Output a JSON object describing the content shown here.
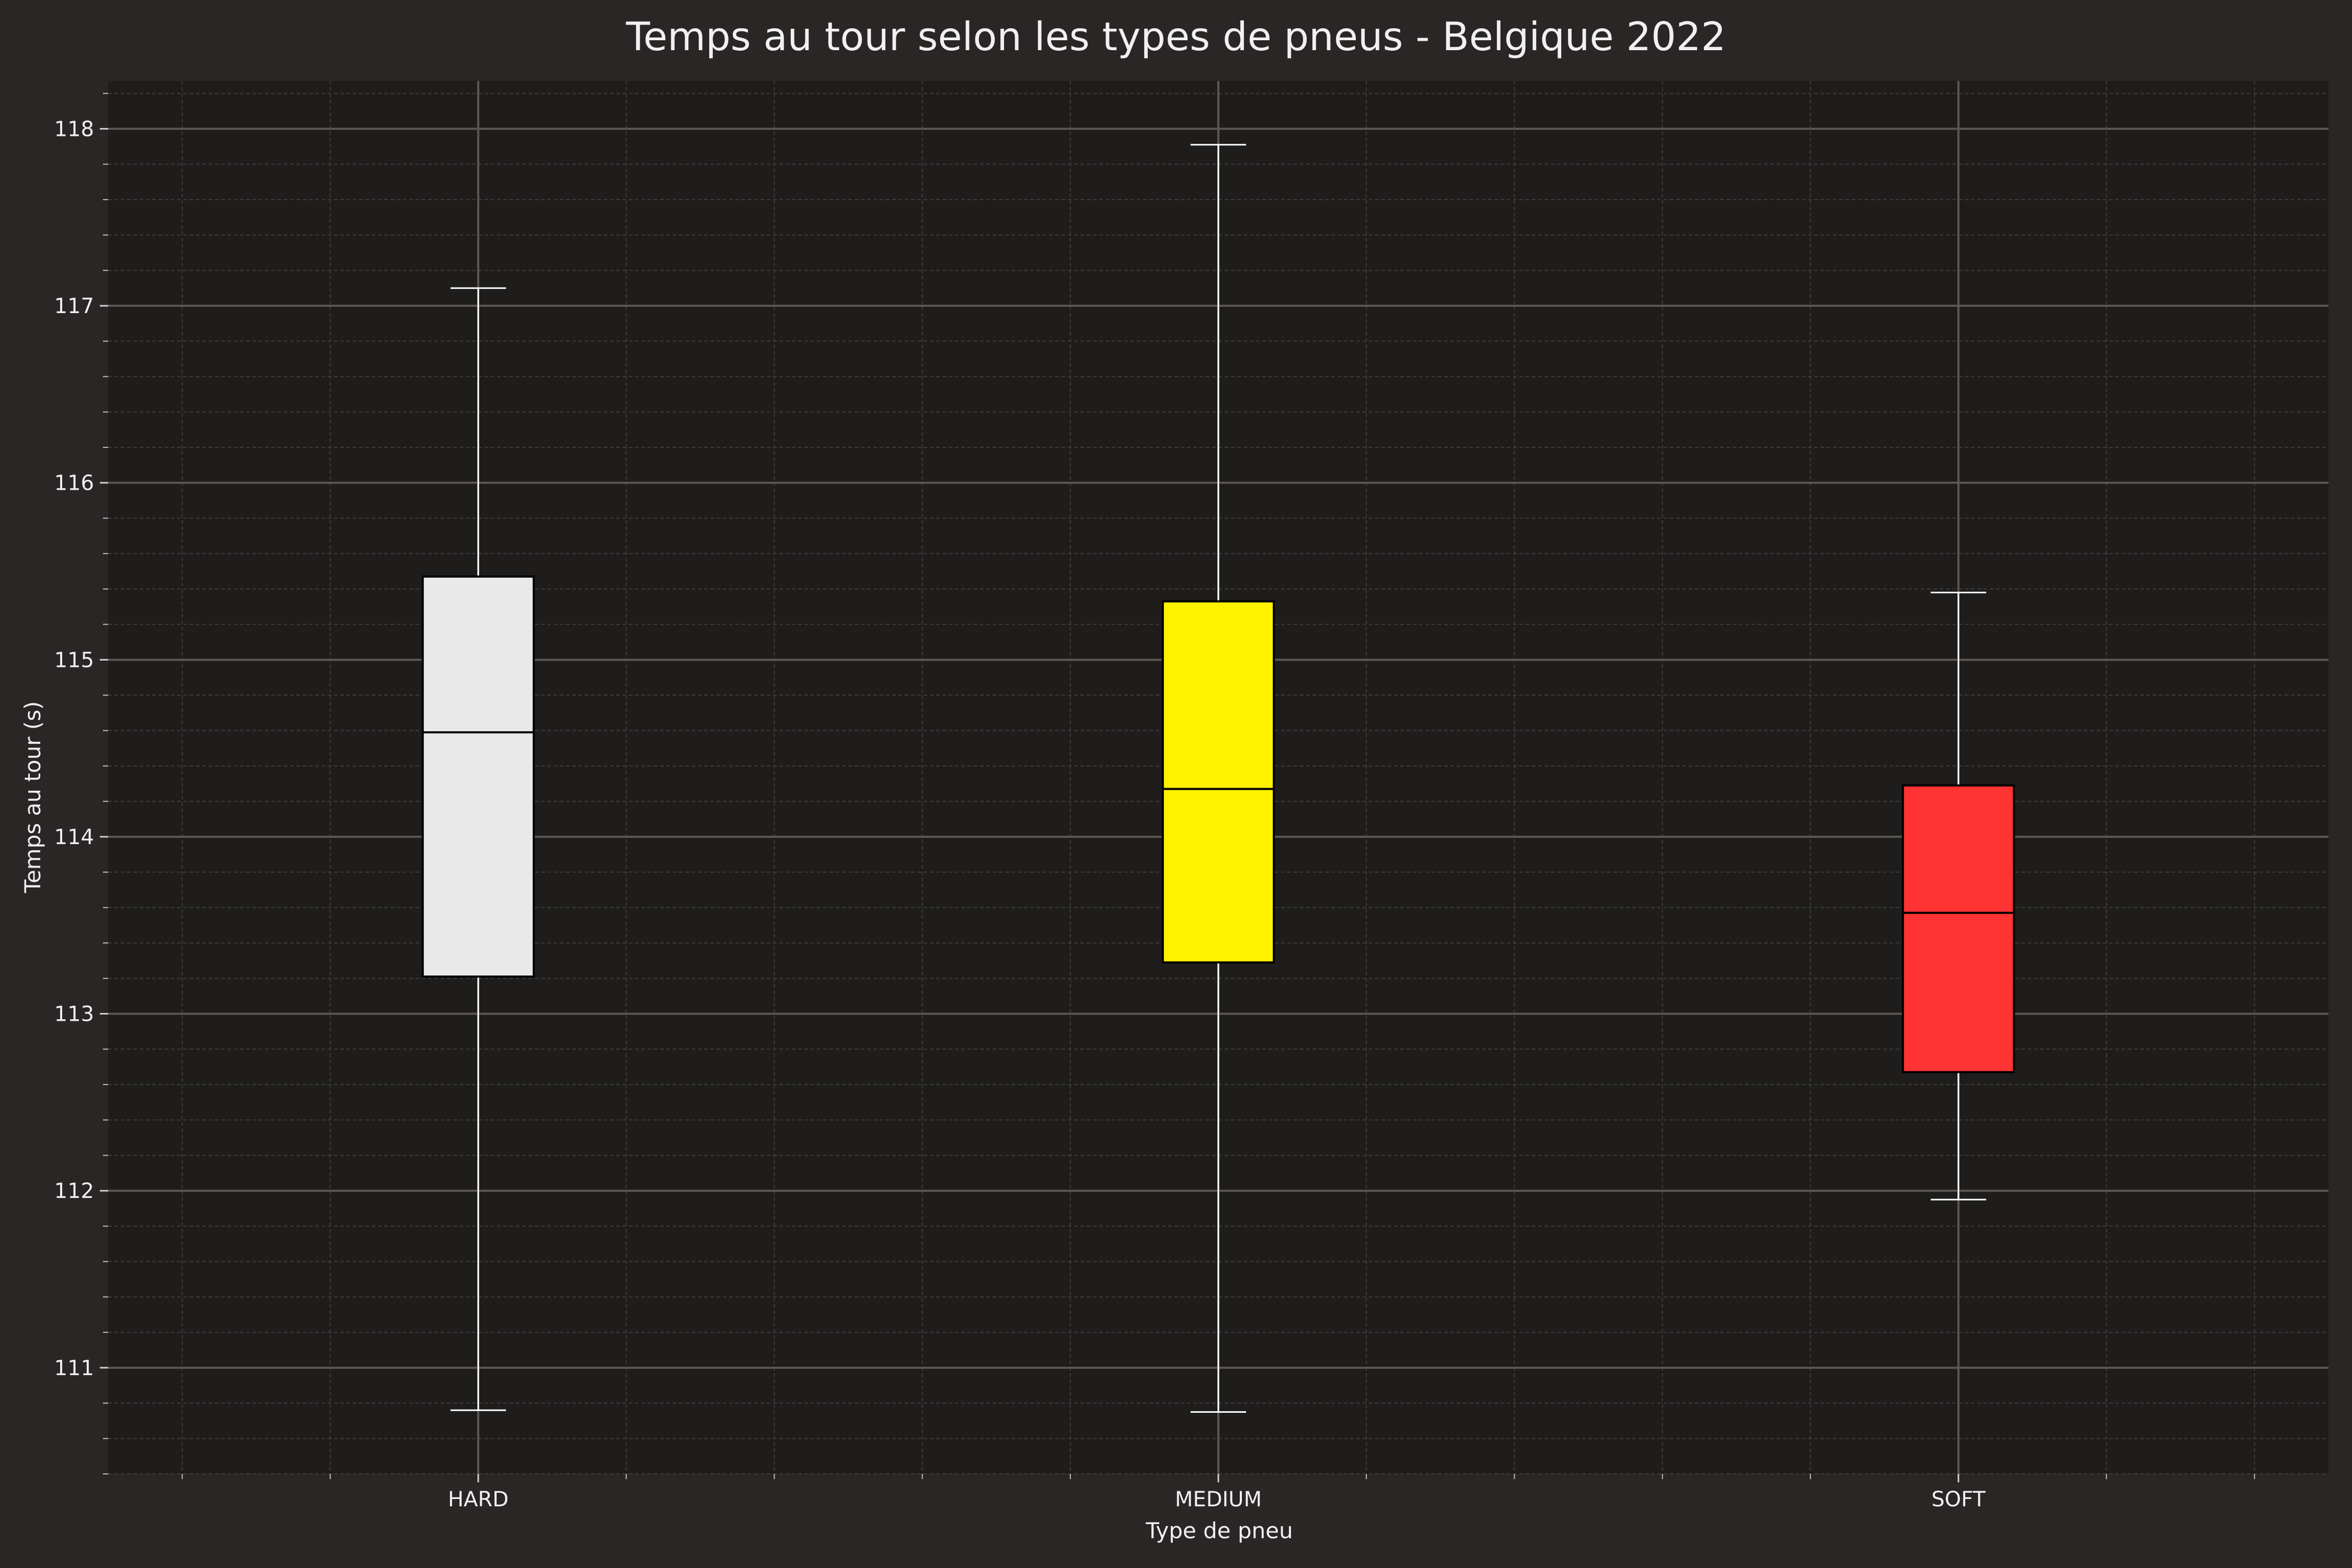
{
  "chart_data": {
    "type": "boxplot",
    "title": "Temps au tour selon les types de pneus - Belgique 2022",
    "xlabel": "Type de pneu",
    "ylabel": "Temps au tour (s)",
    "categories": [
      "HARD",
      "MEDIUM",
      "SOFT"
    ],
    "boxes": [
      {
        "category": "HARD",
        "whisker_low": 110.76,
        "q1": 113.21,
        "median": 114.59,
        "q3": 115.47,
        "whisker_high": 117.1,
        "color": "#e9e9e9"
      },
      {
        "category": "MEDIUM",
        "whisker_low": 110.75,
        "q1": 113.29,
        "median": 114.27,
        "q3": 115.33,
        "whisker_high": 117.91,
        "color": "#fff200"
      },
      {
        "category": "SOFT",
        "whisker_low": 111.95,
        "q1": 112.67,
        "median": 113.57,
        "q3": 114.29,
        "whisker_high": 115.38,
        "color": "#ff3333"
      }
    ],
    "ylim": [
      110.4,
      118.27
    ],
    "yticks": [
      111,
      112,
      113,
      114,
      115,
      116,
      117,
      118
    ],
    "ytick_labels": [
      "111",
      "112",
      "113",
      "114",
      "115",
      "116",
      "117",
      "118"
    ],
    "grid": true,
    "minor_grid": true,
    "legend": "none"
  },
  "colors": {
    "figure_background": "#292625",
    "plot_background": "#1e1d1c",
    "major_grid": "#5a5755",
    "minor_grid": "#3e3c3a",
    "text": "#f0f0f0",
    "whisker": "#ffffff",
    "box_edge": "#000000"
  }
}
